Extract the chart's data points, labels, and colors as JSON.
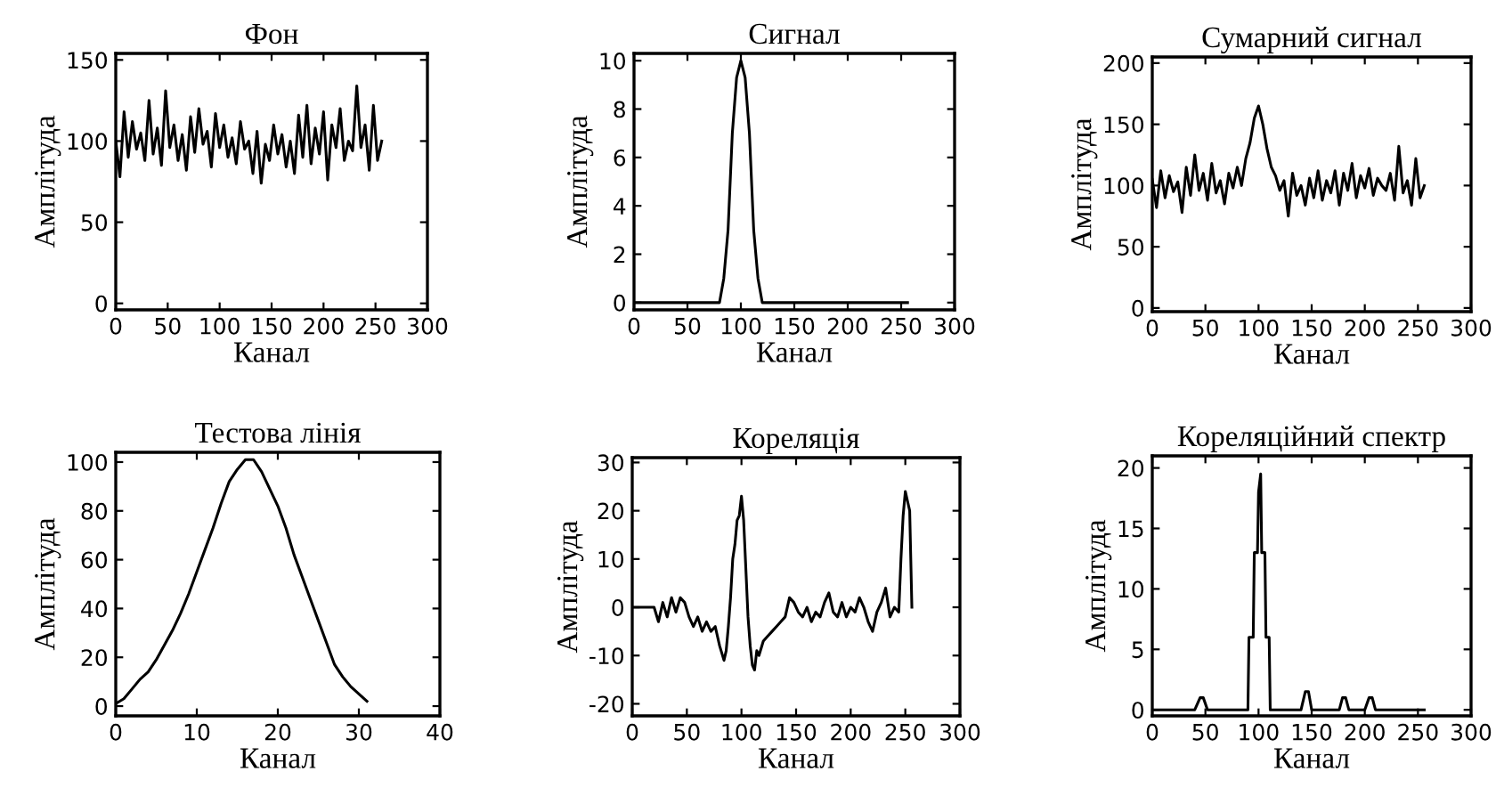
{
  "chart_data": [
    {
      "type": "line",
      "title": "Фон",
      "xlabel": "Канал",
      "ylabel": "Амплітуда",
      "xlim": [
        0,
        300
      ],
      "ylim": [
        -4,
        154
      ],
      "xticks": [
        0,
        50,
        100,
        150,
        200,
        250,
        300
      ],
      "yticks": [
        0,
        50,
        100,
        150
      ],
      "grid": false,
      "legend": false,
      "series": [
        {
          "color": "#000000",
          "x": [
            0,
            4,
            8,
            12,
            16,
            20,
            24,
            28,
            32,
            36,
            40,
            44,
            48,
            52,
            56,
            60,
            64,
            68,
            72,
            76,
            80,
            84,
            88,
            92,
            96,
            100,
            104,
            108,
            112,
            116,
            120,
            124,
            128,
            132,
            136,
            140,
            144,
            148,
            152,
            156,
            160,
            164,
            168,
            172,
            176,
            180,
            184,
            188,
            192,
            196,
            200,
            204,
            208,
            212,
            216,
            220,
            224,
            228,
            232,
            236,
            240,
            244,
            248,
            252,
            256
          ],
          "values": [
            100,
            78,
            118,
            90,
            112,
            95,
            105,
            88,
            125,
            92,
            108,
            85,
            131,
            96,
            110,
            88,
            104,
            82,
            115,
            93,
            120,
            98,
            106,
            84,
            117,
            96,
            110,
            90,
            102,
            86,
            112,
            95,
            100,
            80,
            106,
            74,
            98,
            88,
            110,
            92,
            104,
            84,
            100,
            80,
            116,
            90,
            122,
            86,
            108,
            92,
            118,
            76,
            110,
            96,
            120,
            88,
            100,
            94,
            134,
            96,
            110,
            82,
            122,
            88,
            100
          ]
        }
      ]
    },
    {
      "type": "line",
      "title": "Сигнал",
      "xlabel": "Канал",
      "ylabel": "Амплітуда",
      "xlim": [
        0,
        300
      ],
      "ylim": [
        -0.3,
        10.3
      ],
      "xticks": [
        0,
        50,
        100,
        150,
        200,
        250,
        300
      ],
      "yticks": [
        0,
        2,
        4,
        6,
        8,
        10
      ],
      "grid": false,
      "legend": false,
      "series": [
        {
          "color": "#000000",
          "x": [
            0,
            80,
            84,
            88,
            92,
            96,
            100,
            104,
            108,
            112,
            116,
            120,
            256
          ],
          "values": [
            0,
            0,
            1,
            3,
            7,
            9.3,
            10,
            9.3,
            7,
            3,
            1,
            0,
            0
          ]
        }
      ]
    },
    {
      "type": "line",
      "title": "Сумарний сигнал",
      "xlabel": "Канал",
      "ylabel": "Амплітуда",
      "xlim": [
        0,
        300
      ],
      "ylim": [
        -3,
        205
      ],
      "xticks": [
        0,
        50,
        100,
        150,
        200,
        250,
        300
      ],
      "yticks": [
        0,
        50,
        100,
        150,
        200
      ],
      "grid": false,
      "legend": false,
      "series": [
        {
          "color": "#000000",
          "x": [
            0,
            4,
            8,
            12,
            16,
            20,
            24,
            28,
            32,
            36,
            40,
            44,
            48,
            52,
            56,
            60,
            64,
            68,
            72,
            76,
            80,
            84,
            88,
            92,
            96,
            100,
            104,
            108,
            112,
            116,
            120,
            124,
            128,
            132,
            136,
            140,
            144,
            148,
            152,
            156,
            160,
            164,
            168,
            172,
            176,
            180,
            184,
            188,
            192,
            196,
            200,
            204,
            208,
            212,
            216,
            220,
            224,
            228,
            232,
            236,
            240,
            244,
            248,
            252,
            256
          ],
          "values": [
            105,
            82,
            112,
            90,
            108,
            95,
            103,
            78,
            115,
            92,
            125,
            96,
            110,
            88,
            118,
            94,
            104,
            85,
            110,
            98,
            115,
            100,
            122,
            135,
            155,
            165,
            150,
            130,
            115,
            108,
            96,
            104,
            75,
            110,
            92,
            100,
            84,
            106,
            90,
            112,
            88,
            104,
            94,
            112,
            84,
            110,
            96,
            118,
            90,
            108,
            98,
            114,
            92,
            106,
            100,
            96,
            110,
            88,
            132,
            94,
            104,
            84,
            122,
            90,
            100
          ]
        }
      ]
    },
    {
      "type": "line",
      "title": "Тестова лінія",
      "xlabel": "Канал",
      "ylabel": "Амплітуда",
      "xlim": [
        0,
        40
      ],
      "ylim": [
        -4,
        104
      ],
      "xticks": [
        0,
        10,
        20,
        30,
        40
      ],
      "yticks": [
        0,
        20,
        40,
        60,
        80,
        100
      ],
      "grid": false,
      "legend": false,
      "series": [
        {
          "color": "#000000",
          "x": [
            0,
            1,
            2,
            3,
            4,
            5,
            6,
            7,
            8,
            9,
            10,
            11,
            12,
            13,
            14,
            15,
            16,
            17,
            18,
            19,
            20,
            21,
            22,
            23,
            24,
            25,
            26,
            27,
            28,
            29,
            30,
            31
          ],
          "values": [
            1,
            3,
            7,
            11,
            14,
            19,
            25,
            31,
            38,
            46,
            55,
            64,
            73,
            83,
            92,
            97,
            101,
            101,
            96,
            89,
            82,
            73,
            62,
            53,
            44,
            35,
            26,
            17,
            12,
            8,
            5,
            2
          ]
        }
      ]
    },
    {
      "type": "line",
      "title": "Кореляція",
      "xlabel": "Канал",
      "ylabel": "Амплітуда",
      "xlim": [
        0,
        300
      ],
      "ylim": [
        -22.5,
        31
      ],
      "xticks": [
        0,
        50,
        100,
        150,
        200,
        250,
        300
      ],
      "yticks": [
        -20,
        -10,
        0,
        10,
        20,
        30
      ],
      "grid": false,
      "legend": false,
      "series": [
        {
          "color": "#000000",
          "x": [
            0,
            20,
            24,
            28,
            32,
            36,
            40,
            44,
            48,
            52,
            56,
            60,
            64,
            68,
            72,
            76,
            80,
            84,
            86,
            88,
            90,
            92,
            94,
            96,
            98,
            100,
            102,
            104,
            106,
            108,
            110,
            112,
            114,
            116,
            120,
            124,
            128,
            132,
            136,
            140,
            144,
            148,
            152,
            156,
            160,
            164,
            168,
            172,
            176,
            180,
            184,
            188,
            192,
            196,
            200,
            204,
            208,
            212,
            216,
            220,
            224,
            228,
            232,
            236,
            240,
            244,
            246,
            248,
            250,
            252,
            254,
            256
          ],
          "values": [
            0,
            0,
            -3,
            1,
            -2,
            2,
            -1,
            2,
            1,
            -2,
            -4,
            -2,
            -5,
            -3,
            -5,
            -4,
            -8,
            -11,
            -9,
            -4,
            2,
            10,
            13,
            18,
            19,
            23,
            18,
            8,
            -2,
            -8,
            -12,
            -13,
            -9,
            -10,
            -7,
            -6,
            -5,
            -4,
            -3,
            -2,
            2,
            1,
            -1,
            -2,
            0,
            -3,
            -1,
            -2,
            1,
            3,
            -1,
            -2,
            1,
            -2,
            0,
            -1,
            2,
            0,
            -3,
            -5,
            -1,
            1,
            4,
            -2,
            0,
            -1,
            10,
            19,
            24,
            22,
            20,
            0
          ]
        }
      ]
    },
    {
      "type": "line",
      "title": "Кореляційний спектр",
      "xlabel": "Канал",
      "ylabel": "Амплітуда",
      "xlim": [
        0,
        300
      ],
      "ylim": [
        -0.5,
        21
      ],
      "xticks": [
        0,
        50,
        100,
        150,
        200,
        250,
        300
      ],
      "yticks": [
        0,
        5,
        10,
        15,
        20
      ],
      "grid": false,
      "legend": false,
      "series": [
        {
          "color": "#000000",
          "x": [
            0,
            40,
            45,
            48,
            52,
            90,
            91,
            95,
            96,
            99,
            100,
            102,
            103,
            106,
            107,
            110,
            111,
            140,
            144,
            147,
            150,
            176,
            179,
            182,
            185,
            200,
            204,
            207,
            210,
            256
          ],
          "values": [
            0,
            0,
            1,
            1,
            0,
            0,
            6,
            6,
            13,
            13,
            18,
            19.5,
            13,
            13,
            6,
            6,
            0,
            0,
            1.5,
            1.5,
            0,
            0,
            1,
            1,
            0,
            0,
            1,
            1,
            0,
            0
          ]
        }
      ]
    }
  ]
}
